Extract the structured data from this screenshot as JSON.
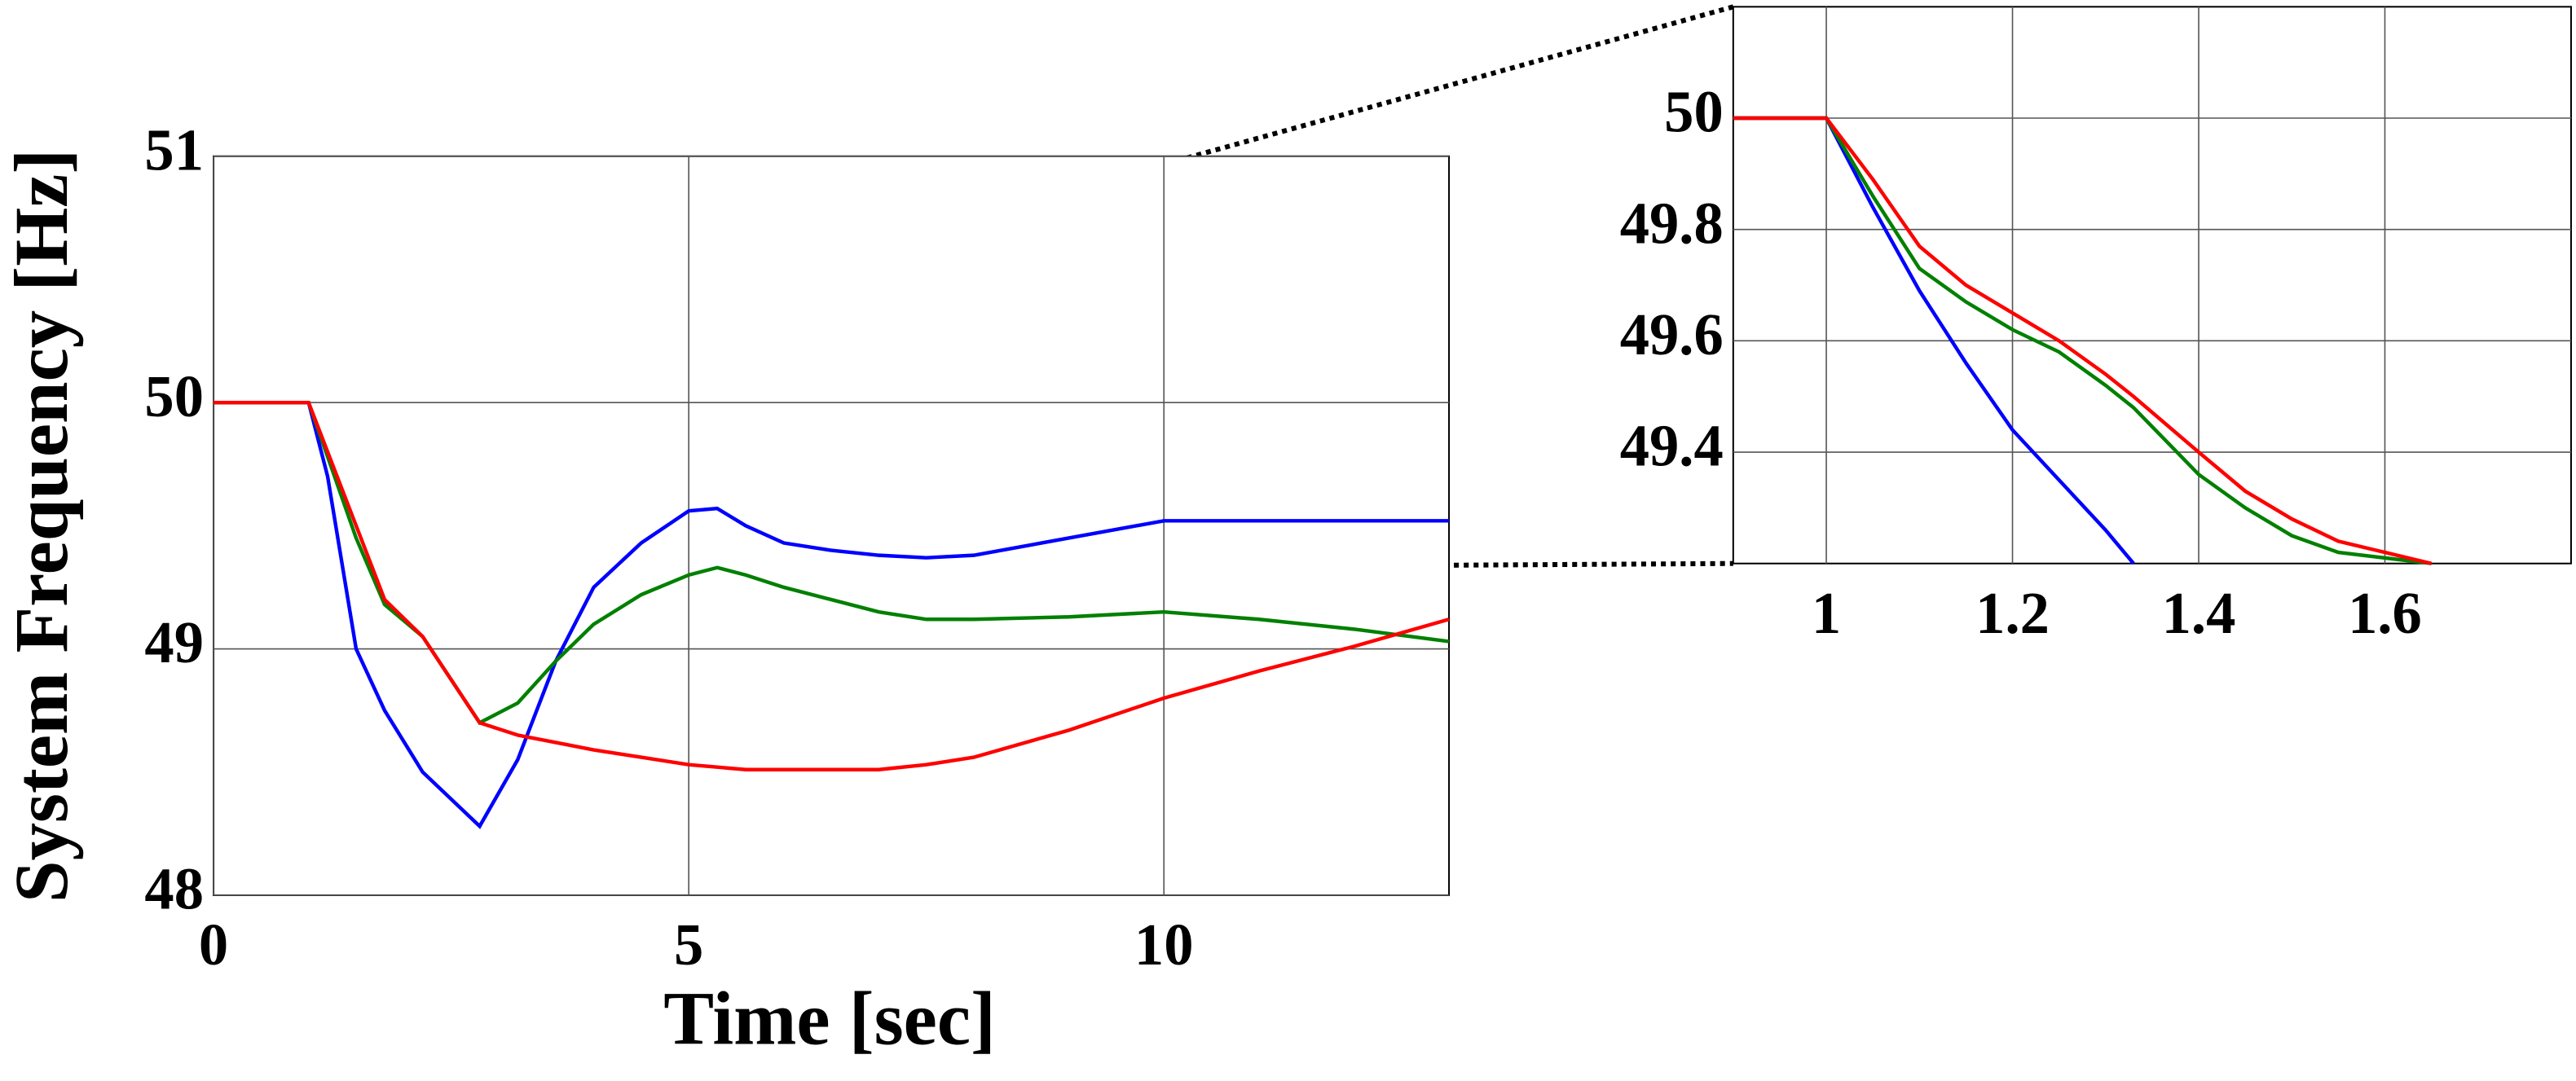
{
  "chart_data": [
    {
      "type": "line",
      "xlabel": "Time [sec]",
      "ylabel": "System Frequency [Hz]",
      "x": [
        0,
        0.9,
        1,
        1.2,
        1.5,
        1.8,
        2.2,
        2.8,
        3.2,
        3.6,
        4,
        4.5,
        5,
        5.3,
        5.6,
        6,
        6.5,
        7,
        7.5,
        8,
        9,
        10,
        11,
        12,
        13
      ],
      "series": [
        {
          "color": "#0000ff",
          "values": [
            50,
            50,
            50,
            49.7,
            49.0,
            48.75,
            48.5,
            48.28,
            48.55,
            48.95,
            49.25,
            49.43,
            49.56,
            49.57,
            49.5,
            49.43,
            49.4,
            49.38,
            49.37,
            49.38,
            49.45,
            49.52,
            49.52,
            49.52,
            49.52
          ]
        },
        {
          "color": "#008000",
          "values": [
            50,
            50,
            50,
            49.78,
            49.45,
            49.18,
            49.05,
            48.7,
            48.78,
            48.95,
            49.1,
            49.22,
            49.3,
            49.33,
            49.3,
            49.25,
            49.2,
            49.15,
            49.12,
            49.12,
            49.13,
            49.15,
            49.12,
            49.08,
            49.03
          ]
        },
        {
          "color": "#ff0000",
          "values": [
            50,
            50,
            50,
            49.8,
            49.5,
            49.2,
            49.05,
            48.7,
            48.65,
            48.62,
            48.59,
            48.56,
            48.53,
            48.52,
            48.51,
            48.51,
            48.51,
            48.51,
            48.53,
            48.56,
            48.67,
            48.8,
            48.91,
            49.01,
            49.12
          ]
        }
      ],
      "xlim": [
        0,
        13
      ],
      "xticks": [
        0,
        5,
        10
      ],
      "ylim": [
        48,
        51
      ],
      "yticks": [
        48,
        49,
        50,
        51
      ],
      "grid": true
    },
    {
      "type": "line",
      "x": [
        0.9,
        1,
        1.05,
        1.1,
        1.15,
        1.2,
        1.25,
        1.3,
        1.33,
        1.4,
        1.45,
        1.5,
        1.55,
        1.6,
        1.65
      ],
      "series": [
        {
          "color": "#0000ff",
          "values": [
            50,
            50,
            49.84,
            49.69,
            49.56,
            49.44,
            49.35,
            49.26,
            49.2,
            null,
            null,
            null,
            null,
            null,
            null
          ]
        },
        {
          "color": "#008000",
          "values": [
            50,
            50,
            49.86,
            49.73,
            49.67,
            49.62,
            49.58,
            49.52,
            49.48,
            49.36,
            49.3,
            49.25,
            49.22,
            49.21,
            49.2
          ]
        },
        {
          "color": "#ff0000",
          "values": [
            50,
            50,
            49.89,
            49.77,
            49.7,
            49.65,
            49.6,
            49.54,
            49.5,
            49.4,
            49.33,
            49.28,
            49.24,
            49.22,
            49.2
          ]
        }
      ],
      "xlim": [
        0.9,
        1.8
      ],
      "xticks": [
        1,
        1.2,
        1.4,
        1.6
      ],
      "ylim": [
        49.2,
        50.2
      ],
      "yticks": [
        49.4,
        49.6,
        49.8,
        50
      ],
      "grid": true
    }
  ]
}
